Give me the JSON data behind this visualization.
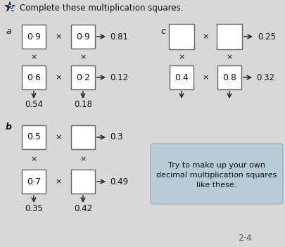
{
  "title": "Complete these multiplication squares.",
  "star_number": "2",
  "bg_color": "#d8d8d8",
  "box_color": "#ffffff",
  "box_edge_color": "#666666",
  "text_color": "#111111",
  "section_a": {
    "label": "a",
    "row1": {
      "box1": "0·9",
      "box2": "0·9",
      "result": "0.81"
    },
    "row2": {
      "box1": "0·6",
      "box2": "0·2",
      "result": "0.12"
    },
    "col1_result": "0.54",
    "col2_result": "0.18"
  },
  "section_b": {
    "label": "b",
    "row1": {
      "box1": "0.5",
      "box2": "",
      "result": "0.3"
    },
    "row2": {
      "box1": "0·7",
      "box2": "",
      "result": "0.49"
    },
    "col1_result": "0.35",
    "col2_result": "0.42"
  },
  "section_c": {
    "label": "c",
    "row1": {
      "box1": "",
      "box2": "",
      "result": "0.25"
    },
    "row2": {
      "box1": "0.4",
      "box2": "0.8",
      "result": "0.32"
    },
    "col1_result": "",
    "col2_result": ""
  },
  "tip_box": {
    "text": "Try to make up your own\ndecimal multiplication squares\nlike these.",
    "bg_color": "#b8ccd8"
  },
  "footer": "2·4"
}
